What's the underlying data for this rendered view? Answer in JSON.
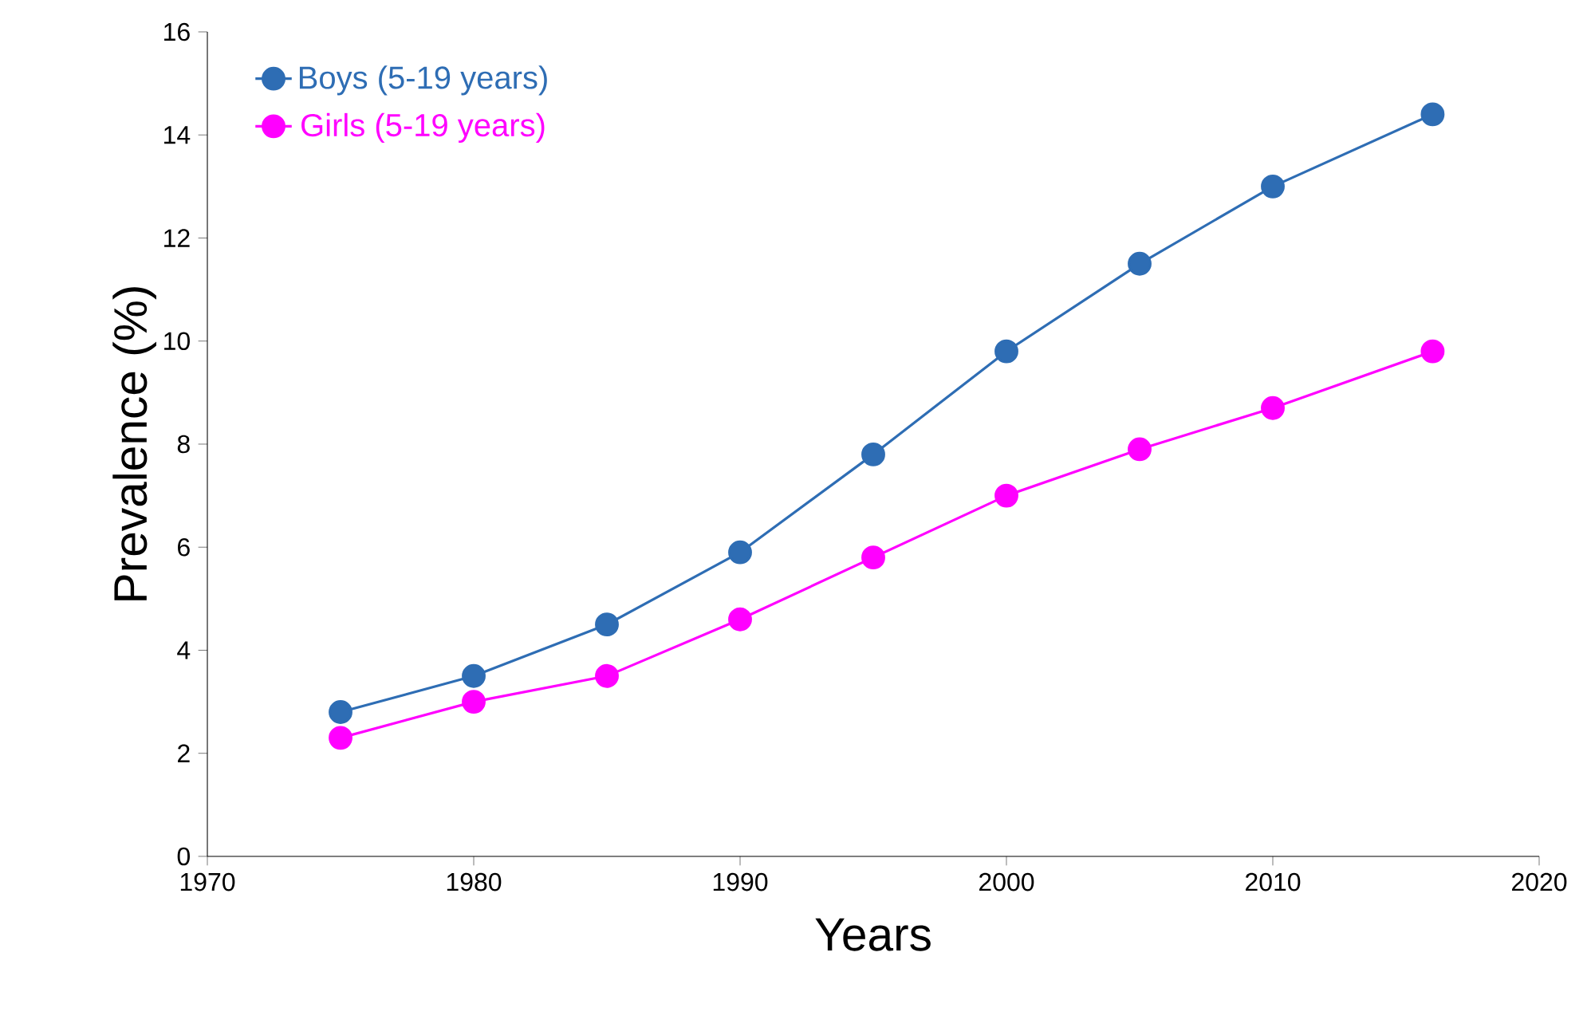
{
  "chart_data": {
    "type": "line",
    "xlabel": "Years",
    "ylabel": "Prevalence (%)",
    "x": [
      1975,
      1980,
      1985,
      1990,
      1995,
      2000,
      2005,
      2010,
      2016
    ],
    "series": [
      {
        "name": "Boys (5-19 years)",
        "color": "#2e6db4",
        "values": [
          2.8,
          3.5,
          4.5,
          5.9,
          7.8,
          9.8,
          11.5,
          13.0,
          14.4
        ]
      },
      {
        "name": "Girls (5-19 years)",
        "color": "#ff00ff",
        "values": [
          2.3,
          3.0,
          3.5,
          4.6,
          5.8,
          7.0,
          7.9,
          8.7,
          9.8
        ]
      }
    ],
    "xlim": [
      1970,
      2020
    ],
    "xticks": [
      1970,
      1980,
      1990,
      2000,
      2010,
      2020
    ],
    "ylim": [
      0,
      16
    ],
    "yticks": [
      0,
      2,
      4,
      6,
      8,
      10,
      12,
      14,
      16
    ],
    "grid": false,
    "legend": "top left",
    "marker": "circle",
    "line_style": "solid"
  }
}
